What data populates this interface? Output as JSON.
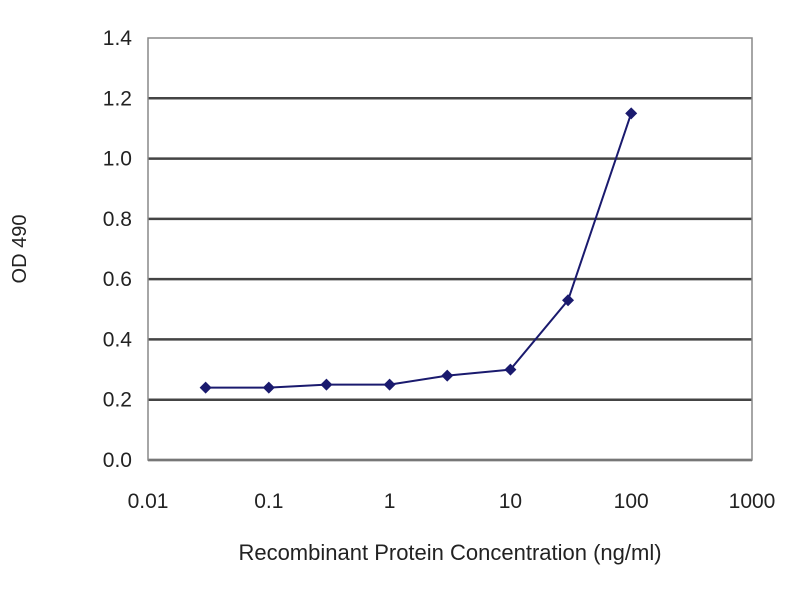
{
  "chart_data": {
    "type": "line",
    "title": "",
    "xlabel": "Recombinant Protein Concentration (ng/ml)",
    "ylabel": "OD 490",
    "x_scale": "log",
    "xlim": [
      0.01,
      1000
    ],
    "ylim": [
      0,
      1.4
    ],
    "x_ticks": [
      "0.01",
      "0.1",
      "1",
      "10",
      "100",
      "1000"
    ],
    "y_ticks": [
      "0.0",
      "0.2",
      "0.4",
      "0.6",
      "0.8",
      "1.0",
      "1.2",
      "1.4"
    ],
    "grid": "horizontal",
    "legend": "none",
    "series": [
      {
        "color": "#1a1a6e",
        "marker": "diamond",
        "x": [
          0.03,
          0.1,
          0.3,
          1,
          3,
          10,
          30,
          100
        ],
        "y": [
          0.24,
          0.24,
          0.25,
          0.25,
          0.28,
          0.3,
          0.53,
          1.15
        ]
      }
    ]
  }
}
